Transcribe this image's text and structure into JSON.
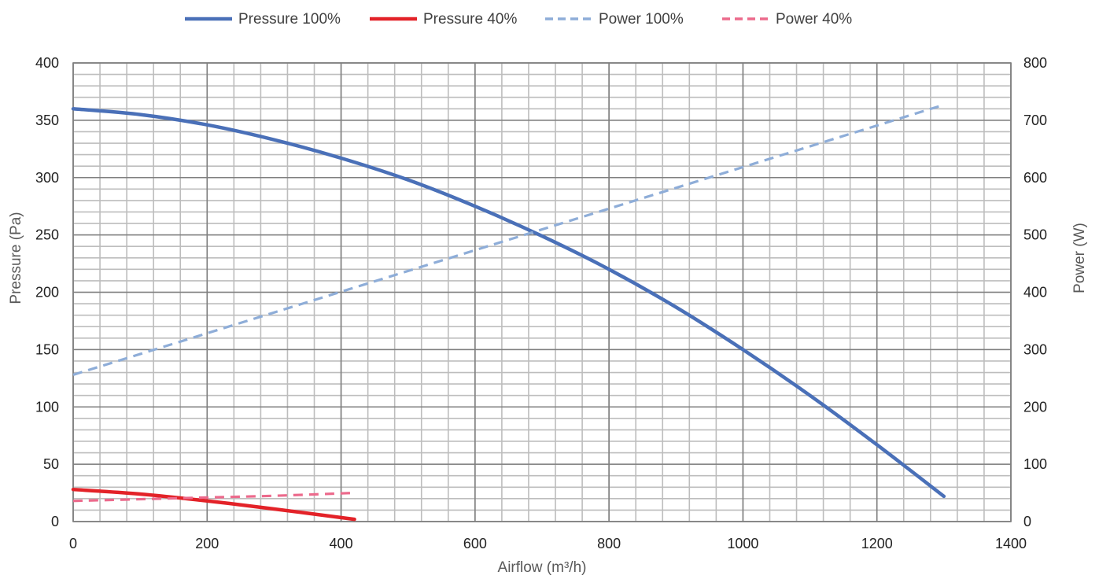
{
  "chart_data": {
    "type": "line",
    "xlabel": "Airflow (m³/h)",
    "ylabel": "Pressure (Pa)",
    "y2label": "Power (W)",
    "xlim": [
      0,
      1400
    ],
    "ylim": [
      0,
      400
    ],
    "y2lim": [
      0,
      800
    ],
    "x_ticks": [
      0,
      200,
      400,
      600,
      800,
      1000,
      1200,
      1400
    ],
    "y_ticks": [
      0,
      50,
      100,
      150,
      200,
      250,
      300,
      350,
      400
    ],
    "y2_ticks": [
      0,
      100,
      200,
      300,
      400,
      500,
      600,
      700,
      800
    ],
    "x_minor_step": 40,
    "y_minor_step": 10,
    "grid": true,
    "legend_position": "top",
    "series": [
      {
        "name": "Pressure 100%",
        "axis": "left",
        "color": "#4a70b8",
        "style": "solid",
        "x": [
          0,
          100,
          200,
          300,
          400,
          500,
          600,
          700,
          800,
          900,
          1000,
          1100,
          1200,
          1300
        ],
        "y": [
          360,
          355,
          346,
          333,
          317,
          298,
          275,
          249,
          220,
          187,
          150,
          110,
          67,
          22
        ]
      },
      {
        "name": "Pressure 40%",
        "axis": "left",
        "color": "#e32228",
        "style": "solid",
        "x": [
          0,
          100,
          200,
          300,
          420
        ],
        "y": [
          28,
          24,
          18,
          11,
          2
        ]
      },
      {
        "name": "Power 100%",
        "axis": "right",
        "color": "#8eadd8",
        "style": "dashed",
        "x": [
          0,
          1300
        ],
        "y": [
          256,
          727
        ]
      },
      {
        "name": "Power 40%",
        "axis": "right",
        "color": "#ec6a8c",
        "style": "dashed",
        "x": [
          0,
          100,
          200,
          300,
          420
        ],
        "y": [
          36,
          39,
          42,
          45,
          50
        ]
      }
    ]
  }
}
